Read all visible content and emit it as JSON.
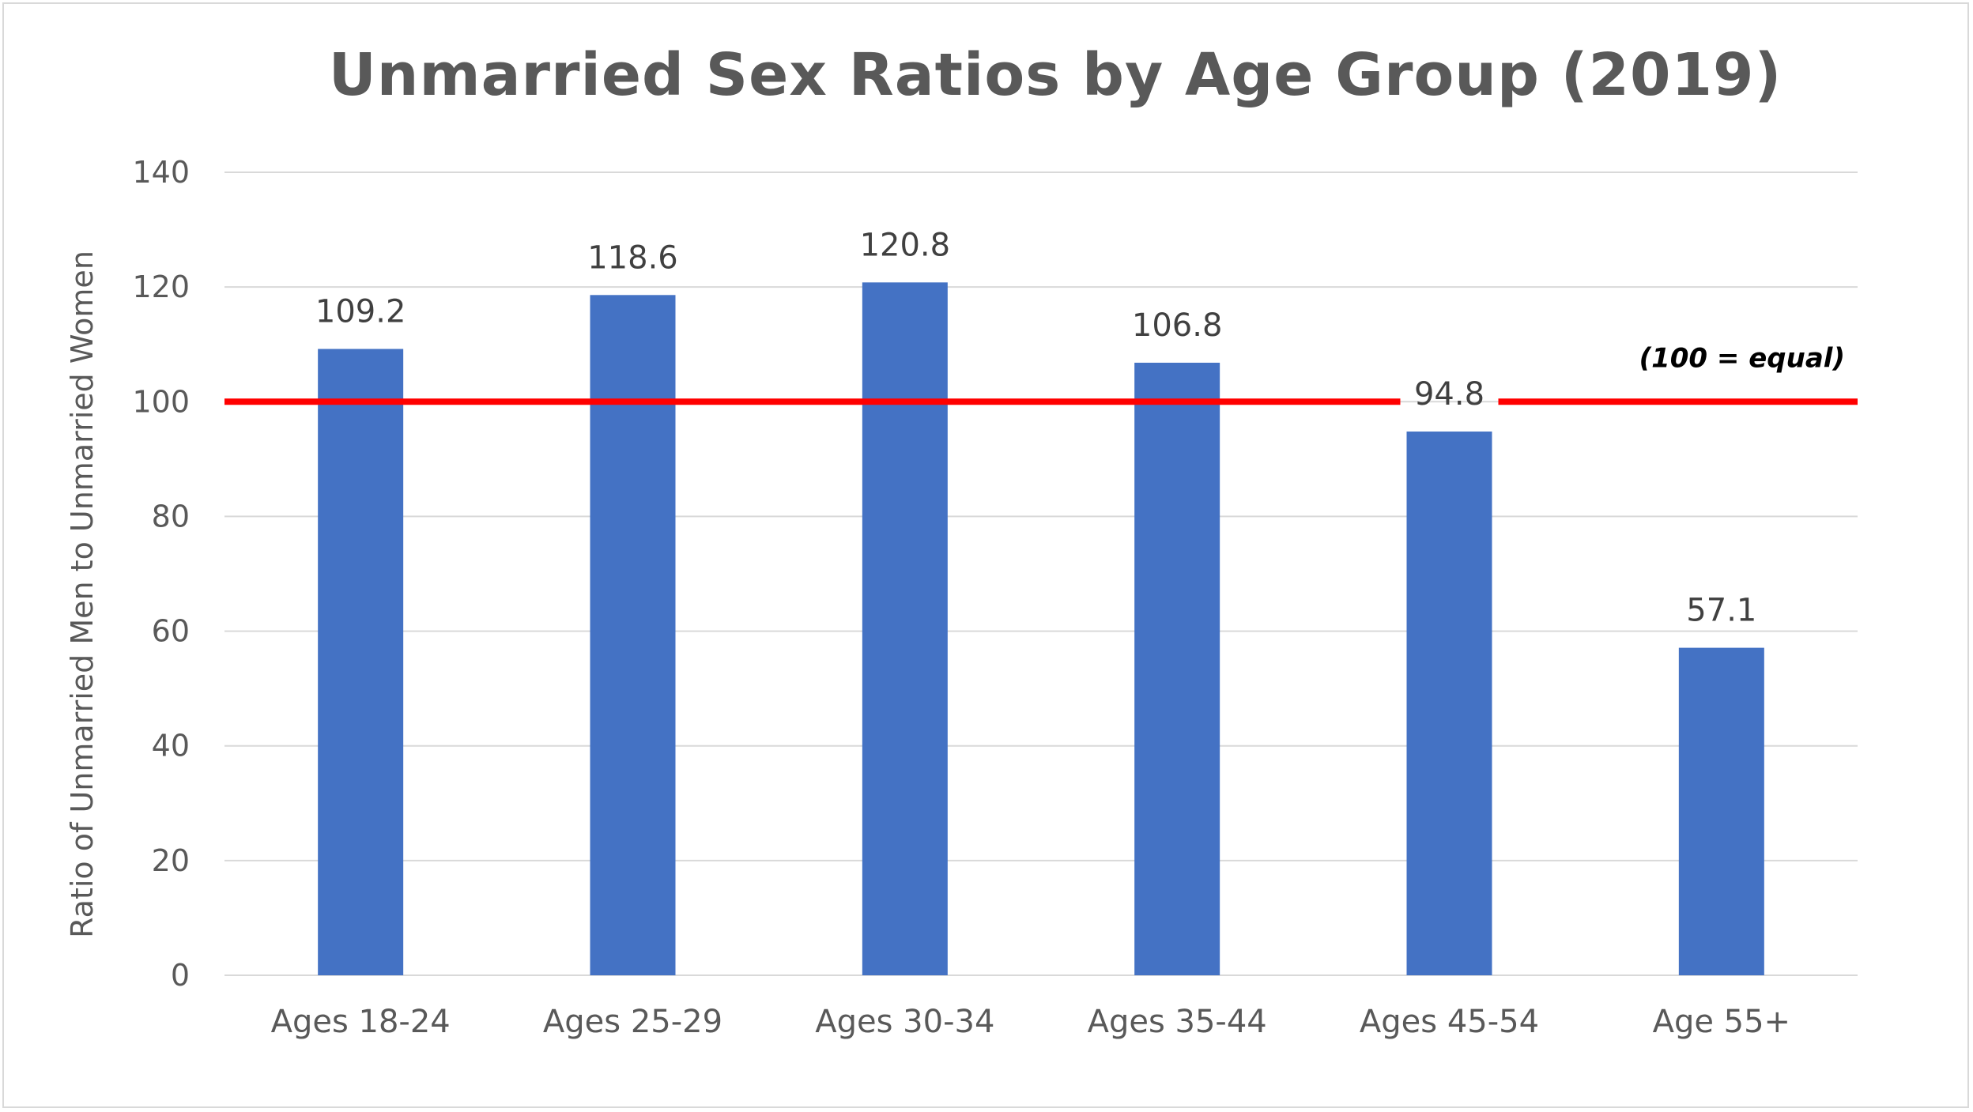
{
  "chart_data": {
    "type": "bar",
    "title": "Unmarried Sex Ratios by Age Group (2019)",
    "xlabel": "",
    "ylabel": "Ratio of Unmarried Men to Unmarried Women",
    "categories": [
      "Ages 18-24",
      "Ages 25-29",
      "Ages 30-34",
      "Ages 35-44",
      "Ages 45-54",
      "Age 55+"
    ],
    "values": [
      109.2,
      118.6,
      120.8,
      106.8,
      94.8,
      57.1
    ],
    "value_labels": [
      "109.2",
      "118.6",
      "120.8",
      "106.8",
      "94.8",
      "57.1"
    ],
    "ylim": [
      0,
      140
    ],
    "yticks": [
      "0",
      "20",
      "40",
      "60",
      "80",
      "100",
      "120",
      "140"
    ],
    "grid": true,
    "reference_line": {
      "value": 100,
      "label": "(100 = equal)",
      "color": "#ff0000"
    },
    "bar_color": "#4472c4"
  }
}
